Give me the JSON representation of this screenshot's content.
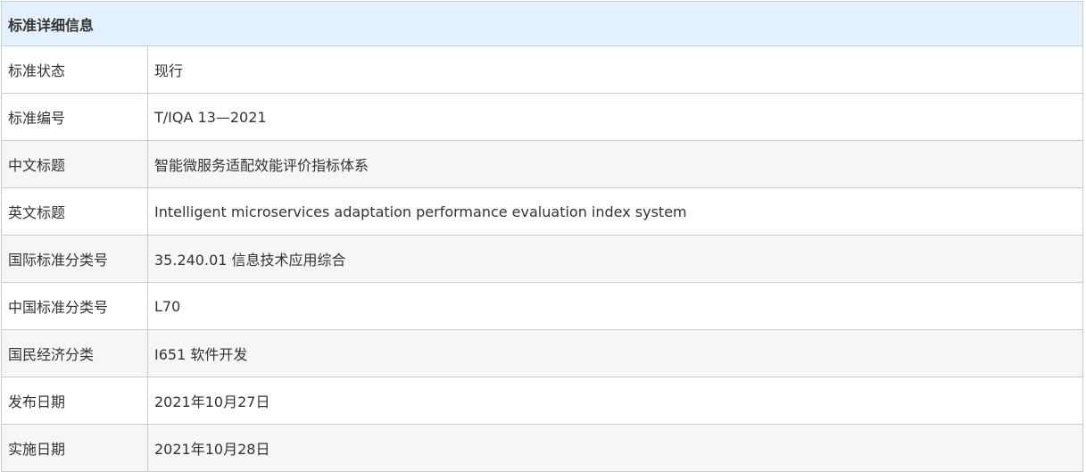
{
  "header": {
    "title": "标准详细信息"
  },
  "rows": [
    {
      "label": "标准状态",
      "value": "现行"
    },
    {
      "label": "标准编号",
      "value": "T/IQA 13—2021"
    },
    {
      "label": "中文标题",
      "value": "智能微服务适配效能评价指标体系"
    },
    {
      "label": "英文标题",
      "value": "Intelligent microservices adaptation performance evaluation index system"
    },
    {
      "label": "国际标准分类号",
      "value": "35.240.01 信息技术应用综合"
    },
    {
      "label": "中国标准分类号",
      "value": "L70"
    },
    {
      "label": "国民经济分类",
      "value": "I651 软件开发"
    },
    {
      "label": "发布日期",
      "value": "2021年10月27日"
    },
    {
      "label": "实施日期",
      "value": "2021年10月28日"
    }
  ],
  "colors": {
    "header_bg": "#e3f0fd",
    "stripe_bg": "#f6f6f6",
    "border": "#cccccc"
  }
}
